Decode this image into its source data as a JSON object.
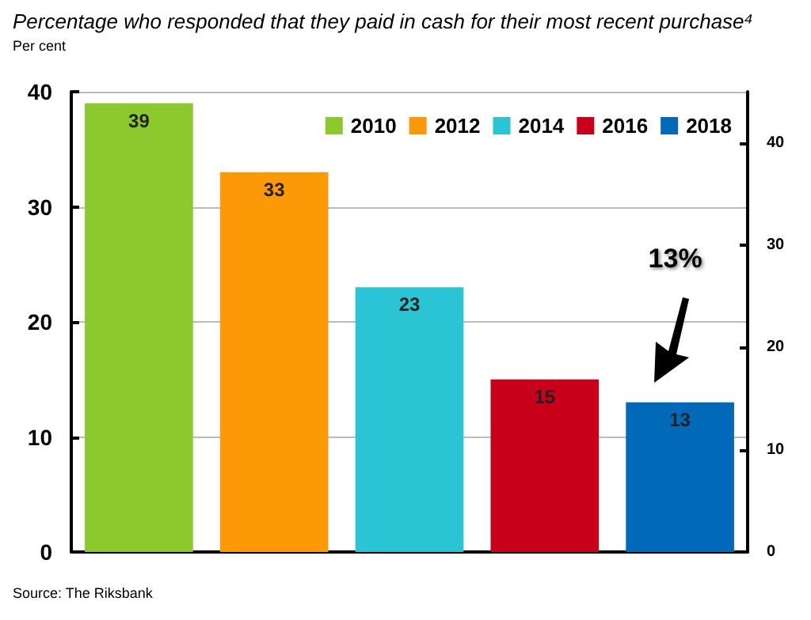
{
  "chart_data": {
    "type": "bar",
    "title": "Percentage who responded that they paid in cash for their most recent purchase⁴",
    "ylabel": "Per cent",
    "categories": [
      null,
      null,
      null,
      null,
      null
    ],
    "series": [
      {
        "name": "2010",
        "color": "#8cc92d",
        "values": [
          39,
          null,
          null,
          null,
          null
        ]
      },
      {
        "name": "2012",
        "color": "#fb9a06",
        "values": [
          null,
          33,
          null,
          null,
          null
        ]
      },
      {
        "name": "2014",
        "color": "#2bc4d4",
        "values": [
          null,
          null,
          23,
          null,
          null
        ]
      },
      {
        "name": "2016",
        "color": "#c8001a",
        "values": [
          null,
          null,
          null,
          15,
          null
        ]
      },
      {
        "name": "2018",
        "color": "#0069b8",
        "values": [
          null,
          null,
          null,
          null,
          13
        ]
      }
    ],
    "stacked": true,
    "ylim": [
      0,
      40
    ],
    "yticks": [
      0,
      10,
      20,
      30,
      40
    ],
    "y2lim": [
      0,
      45
    ],
    "y2ticks": [
      0,
      10,
      20,
      30,
      40
    ],
    "data_labels": true,
    "grid": "y",
    "legend": "top right",
    "annotations": [
      "13%",
      "Source: The Riksbank"
    ]
  }
}
